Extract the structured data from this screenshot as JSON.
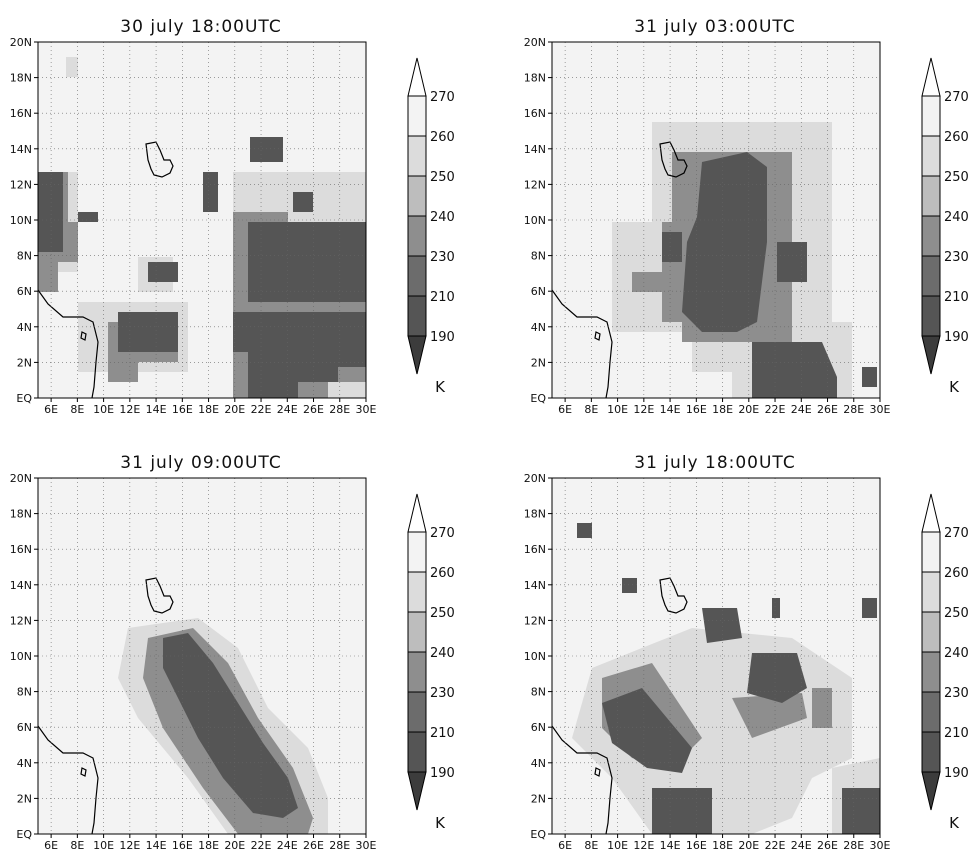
{
  "figure": {
    "unit": "K",
    "colorbar": {
      "levels": [
        "270",
        "260",
        "250",
        "240",
        "230",
        "210",
        "190"
      ],
      "colors": [
        "#f3f3f3",
        "#dcdcdc",
        "#bdbdbd",
        "#8e8e8e",
        "#6c6c6c",
        "#555555",
        "#3c3c3c"
      ]
    },
    "x_ticks": [
      "6E",
      "8E",
      "10E",
      "12E",
      "14E",
      "16E",
      "18E",
      "20E",
      "22E",
      "24E",
      "26E",
      "28E",
      "30E"
    ],
    "y_ticks": [
      "EQ",
      "2N",
      "4N",
      "6N",
      "8N",
      "10N",
      "12N",
      "14N",
      "16N",
      "18N",
      "20N"
    ],
    "panels": [
      {
        "title": "30 july 18:00UTC"
      },
      {
        "title": "31 july 03:00UTC"
      },
      {
        "title": "31 july 09:00UTC"
      },
      {
        "title": "31 july 18:00UTC"
      }
    ]
  }
}
